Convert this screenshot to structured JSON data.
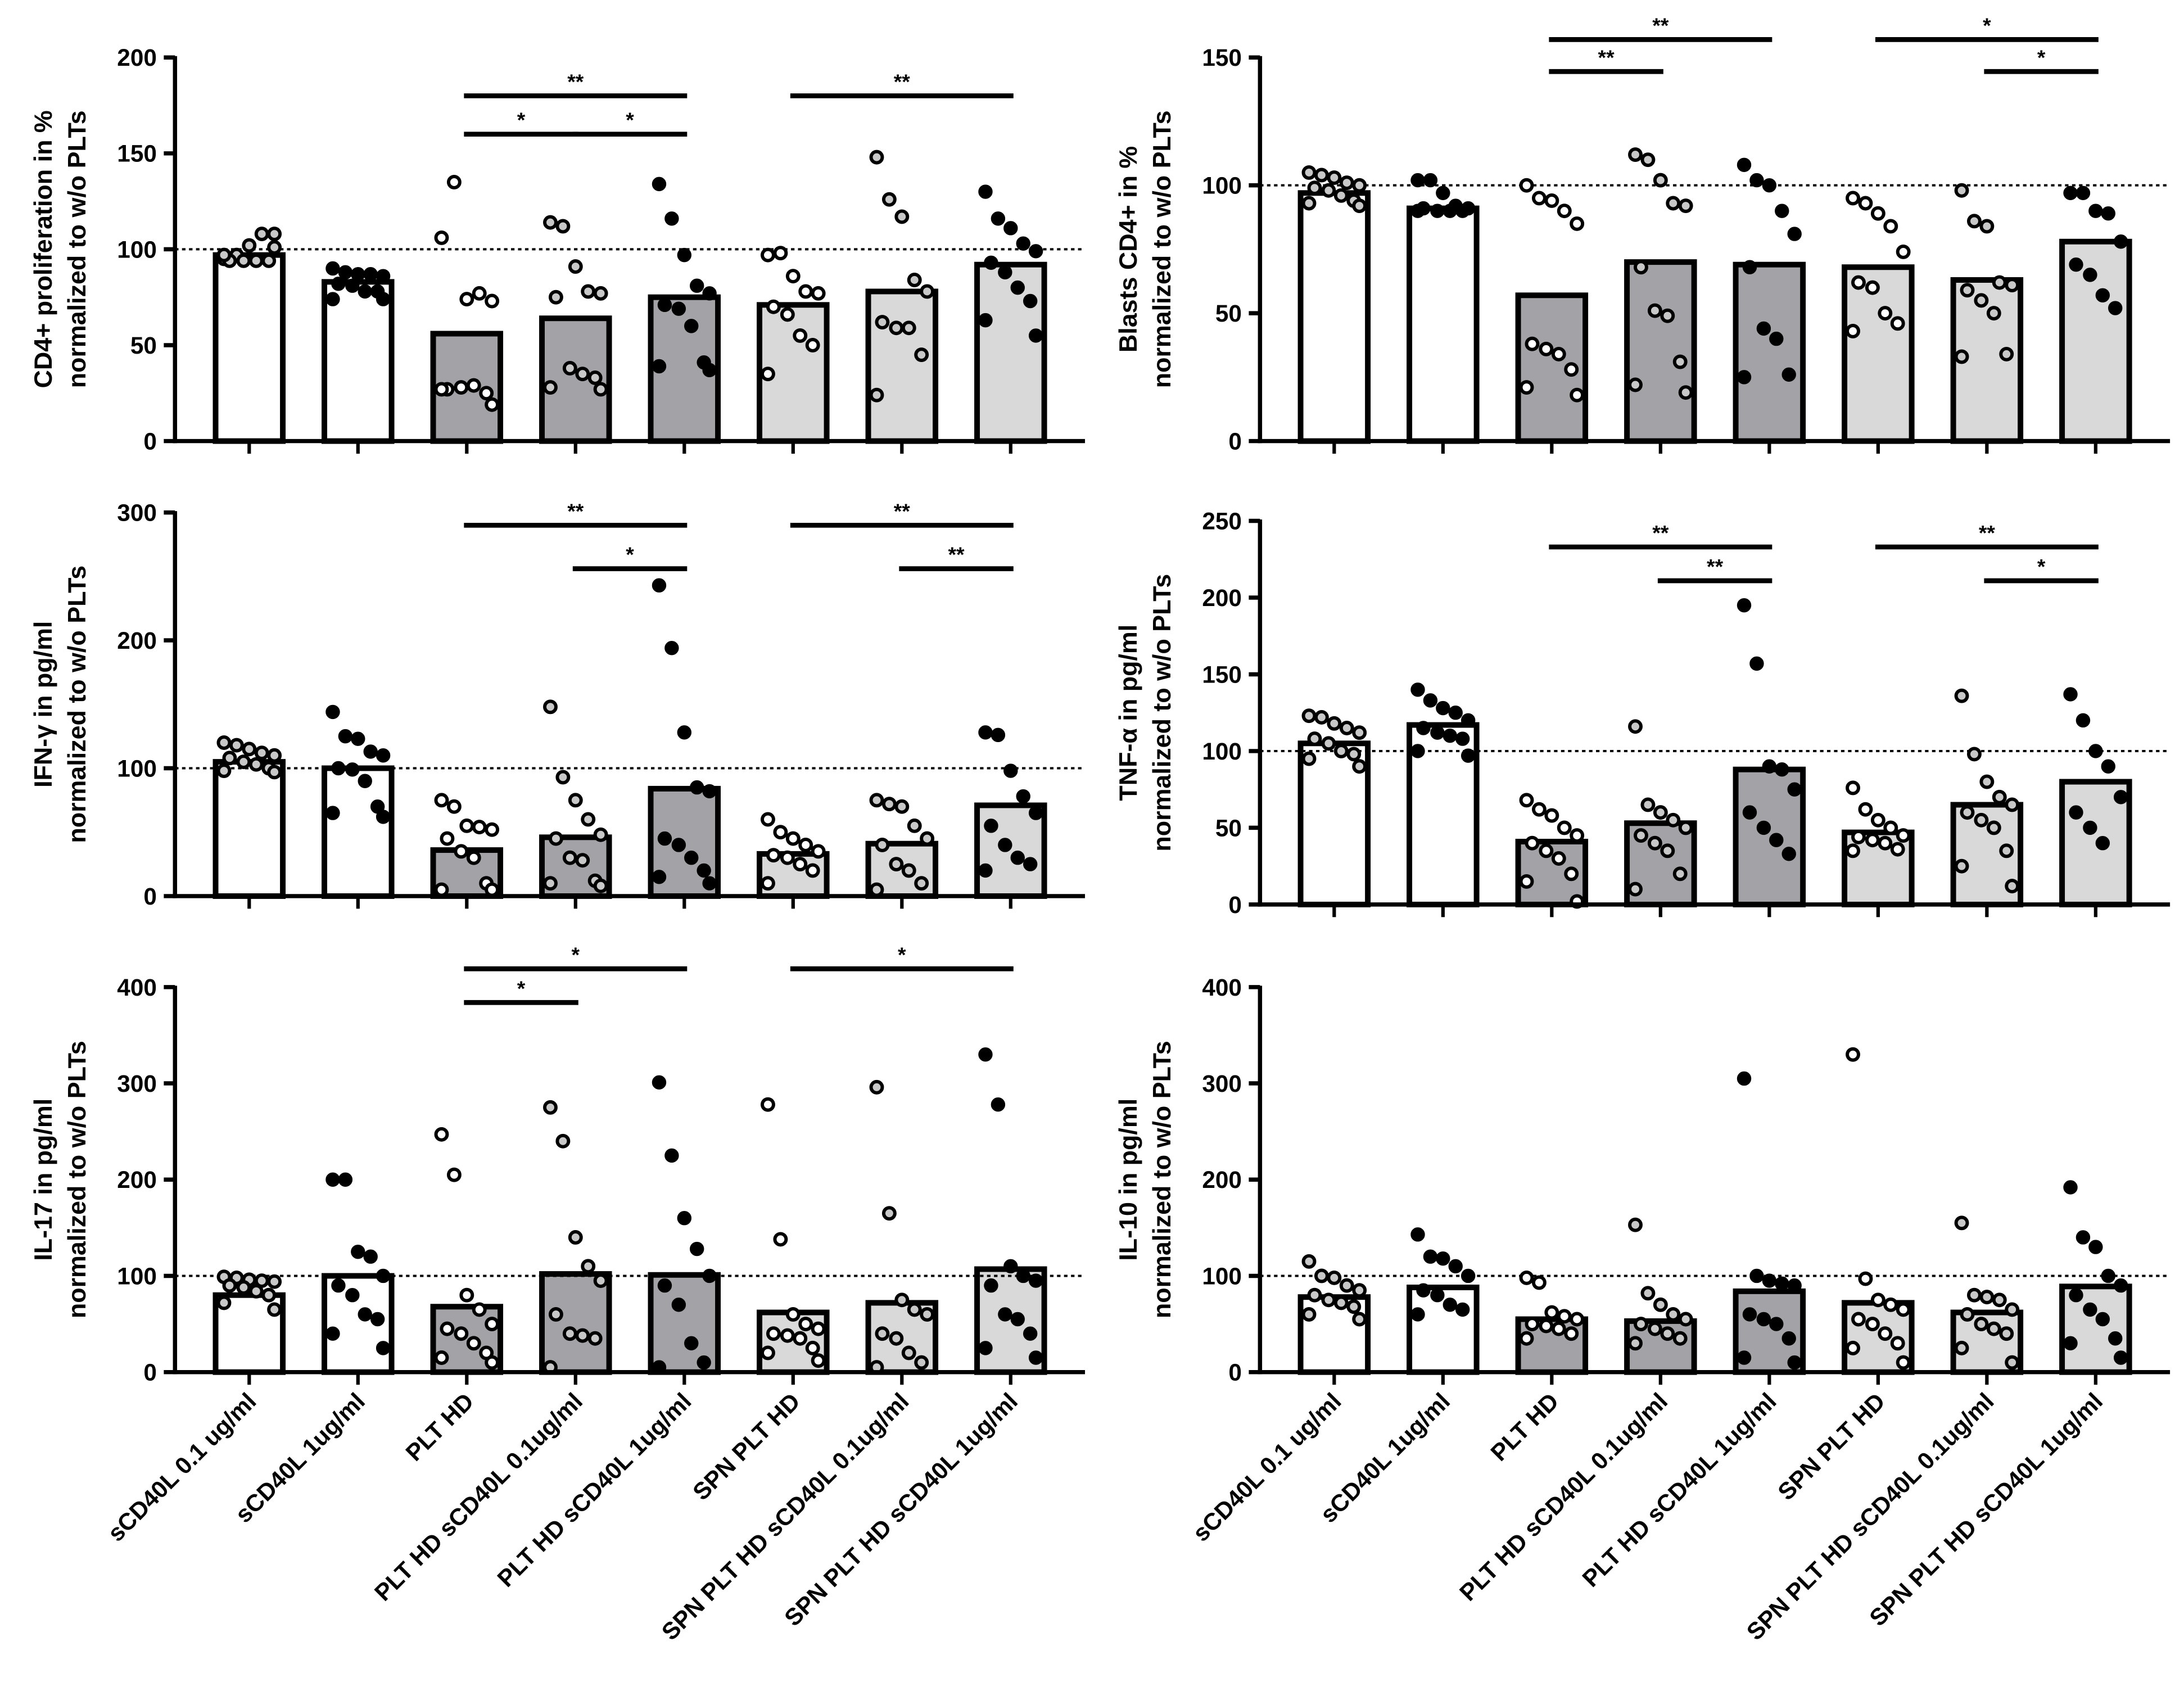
{
  "chart_data": {
    "type": "bar",
    "categories": [
      "sCD40L 0.1 ug/ml",
      "sCD40L 1ug/ml",
      "PLT HD",
      "PLT HD sCD40L 0.1ug/ml",
      "PLT HD sCD40L 1ug/ml",
      "SPN PLT HD",
      "SPN PLT HD sCD40L 0.1ug/ml",
      "SPN PLT HD sCD40L 1ug/ml"
    ],
    "bar_colors": [
      "#ffffff",
      "#ffffff",
      "#a3a3a7",
      "#a3a3a7",
      "#a3a3a7",
      "#d9d9d9",
      "#d9d9d9",
      "#d9d9d9"
    ],
    "point_styles": [
      "gray",
      "black",
      "white",
      "gray",
      "black",
      "white",
      "gray",
      "black"
    ],
    "reference_line": 100,
    "panels": [
      {
        "ylabel": [
          "CD4+ proliferation in %",
          "normalized  to w/o PLTs"
        ],
        "ylim": [
          0,
          200
        ],
        "ticks": [
          "0",
          "50",
          "100",
          "150",
          "200"
        ],
        "values": [
          97,
          83,
          56,
          64,
          75,
          71,
          78,
          92
        ],
        "points": [
          [
            95,
            97,
            102,
            108,
            108,
            94,
            94,
            94,
            94,
            97,
            101
          ],
          [
            90,
            88,
            87,
            87,
            86,
            82,
            81,
            78,
            78,
            74,
            74
          ],
          [
            106,
            135,
            74,
            77,
            73,
            27,
            28,
            29,
            25,
            27,
            19
          ],
          [
            114,
            112,
            91,
            78,
            77,
            75,
            38,
            35,
            33,
            28,
            27
          ],
          [
            134,
            116,
            97,
            81,
            77,
            71,
            69,
            60,
            41,
            39,
            37
          ],
          [
            97,
            98,
            86,
            78,
            77,
            70,
            66,
            55,
            50,
            35
          ],
          [
            148,
            126,
            117,
            84,
            78,
            62,
            59,
            59,
            45,
            24
          ],
          [
            130,
            116,
            111,
            103,
            99,
            93,
            88,
            80,
            73,
            63,
            55
          ]
        ],
        "significance": [
          {
            "from": 2,
            "to": 4,
            "label": "**",
            "y": 180
          },
          {
            "from": 2,
            "to": 3,
            "label": "*",
            "y": 160
          },
          {
            "from": 3,
            "to": 4,
            "label": "*",
            "y": 160
          },
          {
            "from": 5,
            "to": 7,
            "label": "**",
            "y": 180
          }
        ]
      },
      {
        "ylabel": [
          "Blasts CD4+  in %",
          "normalized  to w/o PLTs"
        ],
        "ylim": [
          0,
          150
        ],
        "ticks": [
          "0",
          "50",
          "100",
          "150"
        ],
        "values": [
          97,
          91,
          57,
          70,
          69,
          68,
          63,
          78
        ],
        "points": [
          [
            105,
            104,
            103,
            101,
            100,
            99,
            98,
            96,
            94,
            93,
            92
          ],
          [
            102,
            102,
            97,
            92,
            91,
            91,
            90,
            90,
            90,
            90
          ],
          [
            100,
            95,
            94,
            90,
            85,
            38,
            36,
            34,
            28,
            21,
            18
          ],
          [
            112,
            110,
            102,
            93,
            92,
            68,
            51,
            49,
            31,
            22,
            19
          ],
          [
            108,
            102,
            100,
            90,
            81,
            68,
            44,
            40,
            26,
            25
          ],
          [
            95,
            93,
            89,
            84,
            74,
            62,
            60,
            50,
            46,
            43
          ],
          [
            98,
            86,
            84,
            62,
            61,
            59,
            55,
            50,
            34,
            33
          ],
          [
            97,
            97,
            90,
            89,
            78,
            69,
            65,
            57,
            52
          ]
        ],
        "significance": [
          {
            "from": 2,
            "to": 4,
            "label": "**",
            "y": 157
          },
          {
            "from": 2,
            "to": 3,
            "label": "**",
            "y": 144.5
          },
          {
            "from": 5,
            "to": 7,
            "label": "*",
            "y": 157
          },
          {
            "from": 6,
            "to": 7,
            "label": "*",
            "y": 144.5
          }
        ]
      },
      {
        "ylabel": [
          "IFN-γ  in pg/ml",
          "normalized  to w/o PLTs"
        ],
        "ylim": [
          0,
          300
        ],
        "ticks": [
          "0",
          "100",
          "200",
          "300"
        ],
        "values": [
          105,
          100,
          36,
          46,
          84,
          33,
          41,
          71
        ],
        "points": [
          [
            120,
            118,
            115,
            112,
            110,
            108,
            105,
            103,
            100,
            98,
            97
          ],
          [
            144,
            125,
            123,
            113,
            110,
            100,
            99,
            90,
            70,
            65,
            62
          ],
          [
            75,
            70,
            55,
            54,
            52,
            45,
            35,
            30,
            10,
            5,
            5
          ],
          [
            148,
            93,
            75,
            60,
            48,
            45,
            30,
            28,
            12,
            10,
            8
          ],
          [
            243,
            194,
            128,
            85,
            82,
            45,
            40,
            30,
            20,
            15,
            10
          ],
          [
            60,
            50,
            45,
            40,
            35,
            32,
            30,
            25,
            20,
            10
          ],
          [
            75,
            72,
            70,
            55,
            45,
            40,
            25,
            20,
            10,
            5
          ],
          [
            128,
            126,
            98,
            78,
            65,
            55,
            40,
            30,
            25,
            20
          ]
        ],
        "significance": [
          {
            "from": 2,
            "to": 4,
            "label": "**",
            "y": 290
          },
          {
            "from": 3,
            "to": 4,
            "label": "*",
            "y": 256
          },
          {
            "from": 5,
            "to": 7,
            "label": "**",
            "y": 290
          },
          {
            "from": 6,
            "to": 7,
            "label": "**",
            "y": 256
          }
        ]
      },
      {
        "ylabel": [
          "TNF-α  in pg/ml",
          "normalized  to w/o PLTs"
        ],
        "ylim": [
          0,
          250
        ],
        "ticks": [
          "0",
          "50",
          "100",
          "150",
          "200",
          "250"
        ],
        "values": [
          105,
          117,
          41,
          53,
          88,
          47,
          65,
          80
        ],
        "points": [
          [
            123,
            122,
            118,
            115,
            112,
            108,
            105,
            100,
            98,
            95,
            90
          ],
          [
            140,
            133,
            128,
            125,
            120,
            115,
            112,
            110,
            108,
            100,
            97
          ],
          [
            68,
            62,
            58,
            50,
            45,
            40,
            35,
            30,
            20,
            15,
            2
          ],
          [
            116,
            65,
            60,
            55,
            50,
            45,
            40,
            35,
            20,
            10
          ],
          [
            195,
            157,
            90,
            88,
            75,
            60,
            50,
            42,
            33
          ],
          [
            76,
            62,
            55,
            50,
            45,
            44,
            42,
            40,
            36,
            35
          ],
          [
            136,
            98,
            80,
            70,
            65,
            60,
            55,
            50,
            35,
            25,
            12
          ],
          [
            137,
            120,
            100,
            90,
            70,
            60,
            50,
            40
          ]
        ],
        "significance": [
          {
            "from": 2,
            "to": 4,
            "label": "**",
            "y": 233
          },
          {
            "from": 3,
            "to": 4,
            "label": "**",
            "y": 211
          },
          {
            "from": 5,
            "to": 7,
            "label": "**",
            "y": 233
          },
          {
            "from": 6,
            "to": 7,
            "label": "*",
            "y": 211
          }
        ]
      },
      {
        "ylabel": [
          "IL-17  in pg/ml",
          "normalized  to w/o PLTs"
        ],
        "ylim": [
          0,
          400
        ],
        "ticks": [
          "0",
          "100",
          "200",
          "300",
          "400"
        ],
        "values": [
          80,
          100,
          68,
          102,
          101,
          62,
          72,
          107
        ],
        "points": [
          [
            99,
            98,
            96,
            95,
            94,
            90,
            88,
            84,
            80,
            72,
            65
          ],
          [
            200,
            200,
            125,
            120,
            100,
            90,
            80,
            60,
            55,
            40,
            25
          ],
          [
            247,
            205,
            80,
            65,
            50,
            45,
            40,
            30,
            20,
            15,
            10
          ],
          [
            275,
            240,
            140,
            110,
            95,
            60,
            40,
            38,
            35,
            5
          ],
          [
            301,
            225,
            160,
            128,
            100,
            90,
            70,
            30,
            10,
            5
          ],
          [
            278,
            138,
            60,
            50,
            45,
            40,
            38,
            35,
            25,
            20,
            12
          ],
          [
            296,
            165,
            75,
            65,
            60,
            40,
            35,
            20,
            10,
            5
          ],
          [
            330,
            278,
            110,
            100,
            95,
            90,
            60,
            55,
            40,
            25,
            15
          ]
        ],
        "significance": [
          {
            "from": 2,
            "to": 4,
            "label": "*",
            "y": 419
          },
          {
            "from": 2,
            "to": 3,
            "label": "*",
            "y": 384
          },
          {
            "from": 5,
            "to": 7,
            "label": "*",
            "y": 419
          }
        ]
      },
      {
        "ylabel": [
          "IL-10  in pg/ml",
          "normalized  to w/o PLTs"
        ],
        "ylim": [
          0,
          400
        ],
        "ticks": [
          "0",
          "100",
          "200",
          "300",
          "400"
        ],
        "values": [
          78,
          88,
          55,
          53,
          84,
          72,
          62,
          89
        ],
        "points": [
          [
            115,
            100,
            98,
            90,
            85,
            80,
            75,
            72,
            68,
            60,
            55
          ],
          [
            143,
            120,
            118,
            110,
            100,
            85,
            80,
            70,
            65,
            60
          ],
          [
            98,
            93,
            62,
            58,
            55,
            50,
            48,
            45,
            40,
            35
          ],
          [
            153,
            82,
            70,
            60,
            55,
            50,
            45,
            40,
            35,
            30
          ],
          [
            305,
            100,
            95,
            92,
            90,
            60,
            55,
            50,
            35,
            15,
            10
          ],
          [
            330,
            97,
            75,
            70,
            65,
            55,
            50,
            40,
            30,
            25,
            10
          ],
          [
            155,
            80,
            78,
            75,
            65,
            60,
            50,
            45,
            40,
            25,
            10
          ],
          [
            192,
            140,
            130,
            100,
            90,
            80,
            65,
            55,
            35,
            30,
            15
          ]
        ],
        "significance": []
      }
    ]
  }
}
